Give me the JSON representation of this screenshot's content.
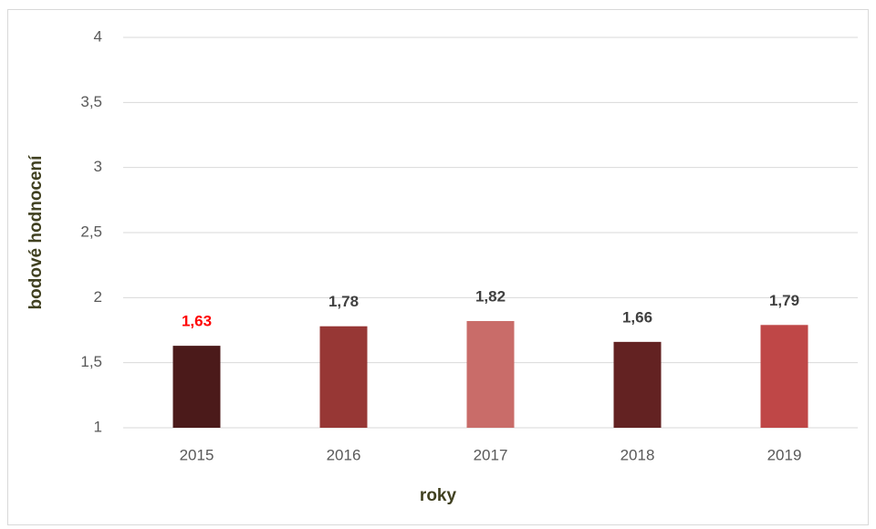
{
  "chart_data": {
    "type": "bar",
    "x_label": "roky",
    "y_label": "bodové hodnocení",
    "categories": [
      "2015",
      "2016",
      "2017",
      "2018",
      "2019"
    ],
    "values": [
      1.63,
      1.78,
      1.82,
      1.66,
      1.79
    ],
    "value_labels": [
      "1,63",
      "1,78",
      "1,82",
      "1,66",
      "1,79"
    ],
    "colors": [
      "#4b1a1a",
      "#973735",
      "#c96c69",
      "#632222",
      "#bf4747"
    ],
    "value_label_colors": [
      "#ff0000",
      "#404040",
      "#404040",
      "#404040",
      "#404040"
    ],
    "ylim": [
      1,
      4
    ],
    "yticks": [
      1,
      {
        "value": 1.5,
        "label": "1,5"
      },
      2,
      {
        "value": 2.5,
        "label": "2,5"
      },
      3,
      {
        "value": 3.5,
        "label": "3,5"
      },
      4
    ],
    "grid": true
  }
}
